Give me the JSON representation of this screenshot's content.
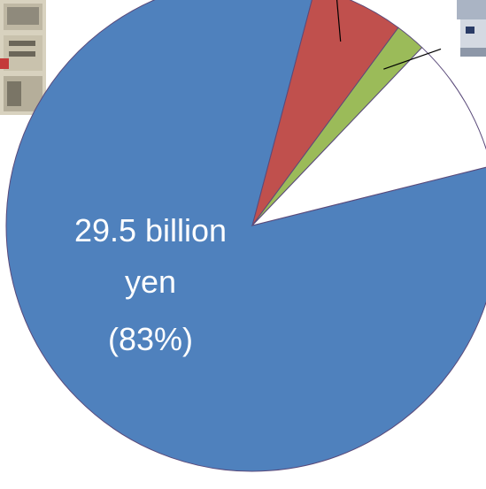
{
  "chart_data": {
    "type": "pie",
    "slices": [
      {
        "value": 83,
        "color": "#4f81bd"
      },
      {
        "value": 6,
        "color": "#c0504d"
      },
      {
        "value": 2,
        "color": "#9bbb59"
      },
      {
        "value": 9,
        "color": "#ffffff"
      }
    ],
    "start_angle_deg": -14,
    "labels": {
      "main_value": "29.5 billion",
      "main_unit": "yen",
      "main_percent": "(83%)"
    }
  },
  "icons": {
    "left_photo": "machine-photo-icon",
    "right_photo": "machine-photo-icon"
  },
  "colors": {
    "outline": "#5a4a7a",
    "leader": "#000000"
  }
}
